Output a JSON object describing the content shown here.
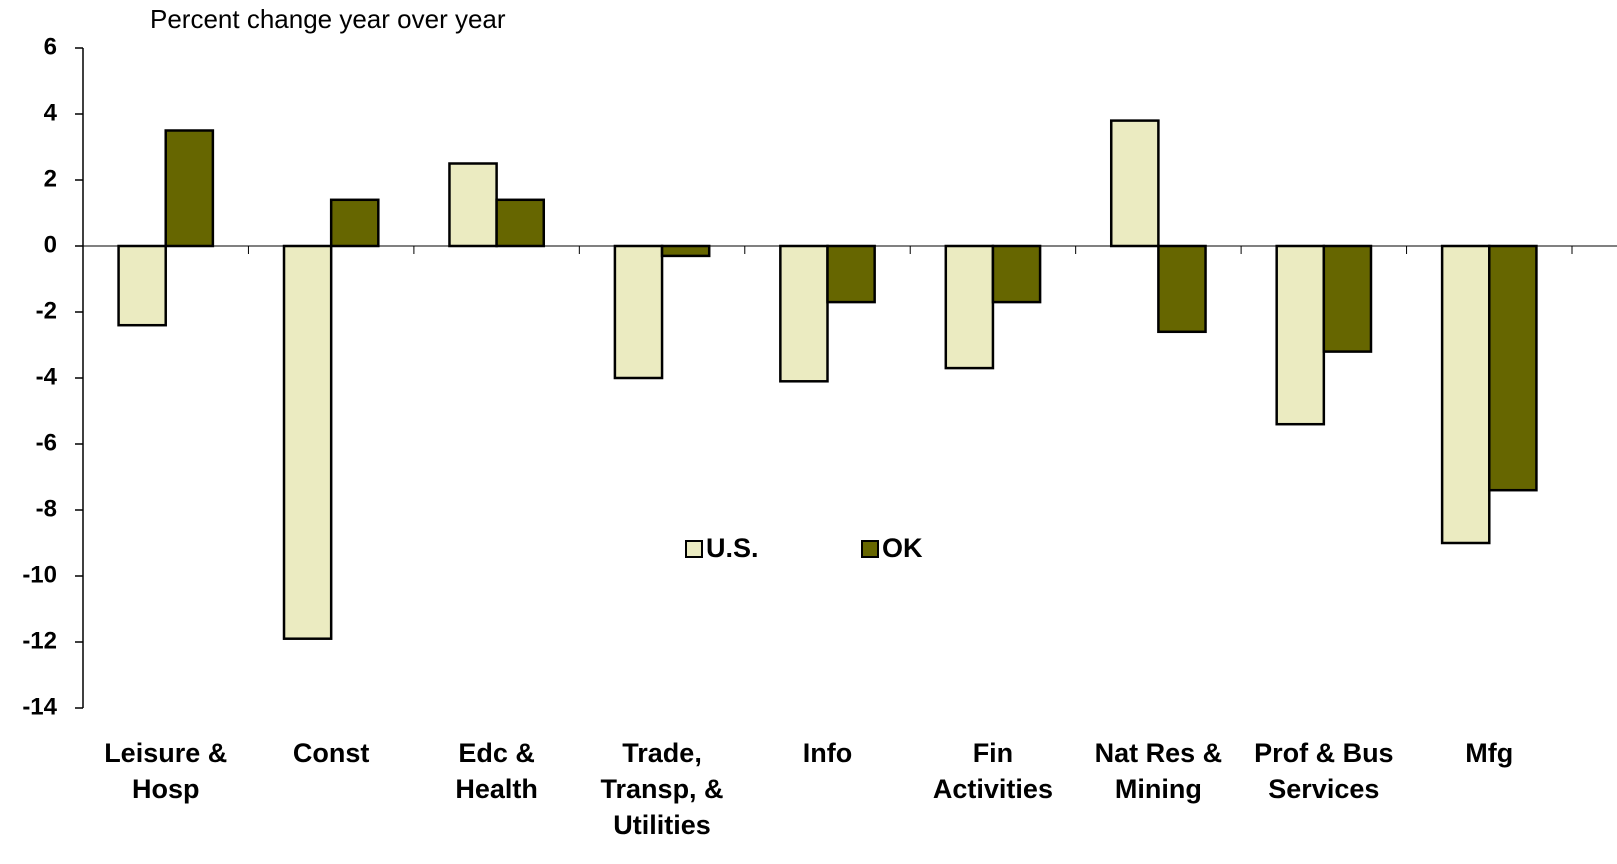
{
  "chart_data": {
    "type": "bar",
    "title": "Percent change year over year",
    "categories": [
      [
        "Leisure &",
        "Hosp"
      ],
      [
        "Const"
      ],
      [
        "Edc &",
        "Health"
      ],
      [
        "Trade,",
        "Transp, &",
        "Utilities"
      ],
      [
        "Info"
      ],
      [
        "Fin",
        "Activities"
      ],
      [
        "Nat Res &",
        "Mining"
      ],
      [
        "Prof & Bus",
        "Services"
      ],
      [
        "Mfg"
      ]
    ],
    "series": [
      {
        "name": "U.S.",
        "color": "#ebebc1",
        "values": [
          -2.4,
          -11.9,
          2.5,
          -4.0,
          -4.1,
          -3.7,
          3.8,
          -5.4,
          -9.0
        ]
      },
      {
        "name": "OK",
        "color": "#666600",
        "values": [
          3.5,
          1.4,
          1.4,
          -0.3,
          -1.7,
          -1.7,
          -2.6,
          -3.2,
          -7.4
        ]
      }
    ],
    "ylim": [
      -14,
      6
    ],
    "yticks": [
      -14,
      -12,
      -10,
      -8,
      -6,
      -4,
      -2,
      0,
      2,
      4,
      6
    ],
    "legend": "center"
  }
}
